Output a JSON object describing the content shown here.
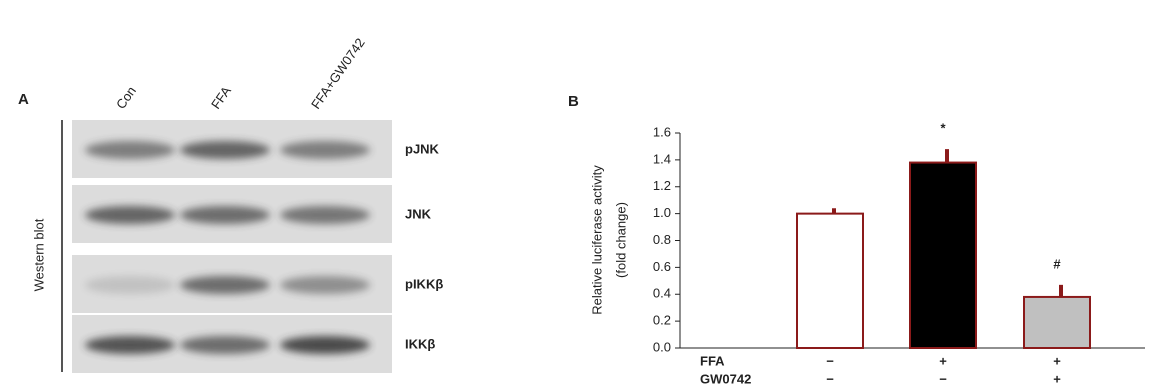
{
  "panel_a": {
    "label": "A",
    "lanes": [
      "Con",
      "FFA",
      "FFA+GW0742"
    ],
    "side_label": "Western blot",
    "rows": [
      "pJNK",
      "JNK",
      "pIKKβ",
      "IKKβ"
    ]
  },
  "chart_data": {
    "type": "bar",
    "panel_label": "B",
    "y_label": [
      "Relative luciferase activity",
      "(fold change)"
    ],
    "categories": [
      null,
      null,
      null
    ],
    "values": [
      1.0,
      1.38,
      0.38
    ],
    "errors": [
      0.04,
      0.1,
      0.09
    ],
    "value_annotations": [
      null,
      "*",
      "#"
    ],
    "colors": [
      "#ffffff",
      "#000000",
      "#c0c0c0"
    ],
    "edge_color": "#8b1a1a",
    "conditions": [
      {
        "label": "FFA",
        "signs": [
          "−",
          "+",
          "+"
        ]
      },
      {
        "label": "GW0742",
        "signs": [
          "−",
          "−",
          "+"
        ]
      }
    ],
    "ylim": [
      0,
      1.6
    ],
    "yticks": [
      {
        "value": 0,
        "label": "0.0"
      },
      {
        "value": 0.2,
        "label": "0.2"
      },
      {
        "value": 0.4,
        "label": "0.4"
      },
      {
        "value": 0.6,
        "label": "0.6"
      },
      {
        "value": 0.8,
        "label": "0.8"
      },
      {
        "value": 1.0,
        "label": "1.0"
      },
      {
        "value": 1.2,
        "label": "1.2"
      },
      {
        "value": 1.4,
        "label": "1.4"
      },
      {
        "value": 1.6,
        "label": "1.6"
      }
    ],
    "grid": false
  }
}
